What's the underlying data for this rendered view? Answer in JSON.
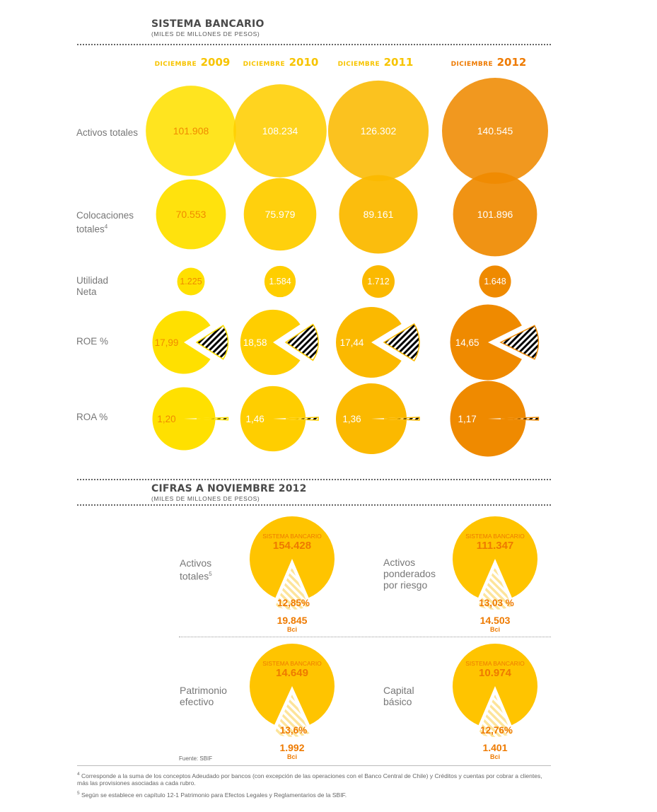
{
  "header": {
    "title": "SISTEMA BANCARIO",
    "subtitle": "(MILES DE MILLONES DE PESOS)"
  },
  "colors": {
    "y2009": "#ffe000",
    "y2010": "#ffce00",
    "y2011": "#fbb900",
    "y2012": "#ef8a00",
    "year_text_2009": "#f7c400",
    "year_text_2012": "#ee7a00",
    "value_text": "#f08a00",
    "nov_fill": "#ffc400",
    "nov_slice": "#fde9a0",
    "nov_text": "#ee7a00"
  },
  "years": [
    {
      "small": "diciembre",
      "big": "2009"
    },
    {
      "small": "diciembre",
      "big": "2010"
    },
    {
      "small": "diciembre",
      "big": "2011"
    },
    {
      "small": "diciembre",
      "big": "2012"
    }
  ],
  "chart_data": [
    {
      "type": "bubble",
      "title": "SISTEMA BANCARIO",
      "subtitle": "(MILES DE MILLONES DE PESOS)",
      "categories": [
        "DICIEMBRE 2009",
        "DICIEMBRE 2010",
        "DICIEMBRE 2011",
        "DICIEMBRE 2012"
      ],
      "series": [
        {
          "name": "Activos totales",
          "values": [
            101908,
            108234,
            126302,
            140545
          ],
          "labels": [
            "101.908",
            "108.234",
            "126.302",
            "140.545"
          ]
        },
        {
          "name": "Colocaciones totales",
          "note": "4",
          "values": [
            70553,
            75979,
            89161,
            101896
          ],
          "labels": [
            "70.553",
            "75.979",
            "89.161",
            "101.896"
          ]
        },
        {
          "name": "Utilidad Neta",
          "values": [
            1225,
            1584,
            1712,
            1648
          ],
          "labels": [
            "1.225",
            "1.584",
            "1.712",
            "1.648"
          ]
        },
        {
          "name": "ROE %",
          "values": [
            17.99,
            18.58,
            17.44,
            14.65
          ],
          "labels": [
            "17,99",
            "18,58",
            "17,44",
            "14,65"
          ]
        },
        {
          "name": "ROA %",
          "values": [
            1.2,
            1.46,
            1.36,
            1.17
          ],
          "labels": [
            "1,20",
            "1,46",
            "1,36",
            "1,17"
          ]
        }
      ]
    },
    {
      "type": "pie",
      "title": "CIFRAS A NOVIEMBRE 2012",
      "subtitle": "(MILES DE MILLONES DE PESOS)",
      "items": [
        {
          "name": "Activos totales",
          "note": "5",
          "system_label": "SISTEMA BANCARIO",
          "system_value": 154428,
          "system_text": "154.428",
          "share": 12.85,
          "share_text": "12,85%",
          "bci_value": 19845,
          "bci_text": "19.845",
          "bci_label": "Bci"
        },
        {
          "name": "Activos ponderados por riesgo",
          "system_label": "SISTEMA BANCARIO",
          "system_value": 111347,
          "system_text": "111.347",
          "share": 13.03,
          "share_text": "13,03 %",
          "bci_value": 14503,
          "bci_text": "14.503",
          "bci_label": "Bci"
        },
        {
          "name": "Patrimonio efectivo",
          "system_label": "SISTEMA BANCARIO",
          "system_value": 14649,
          "system_text": "14.649",
          "share": 13.6,
          "share_text": "13,6%",
          "bci_value": 1992,
          "bci_text": "1.992",
          "bci_label": "Bci"
        },
        {
          "name": "Capital básico",
          "system_label": "SISTEMA BANCARIO",
          "system_value": 10974,
          "system_text": "10.974",
          "share": 12.76,
          "share_text": "12,76%",
          "bci_value": 1401,
          "bci_text": "1.401",
          "bci_label": "Bci"
        }
      ]
    }
  ],
  "rows": {
    "activos": "Activos totales",
    "colocaciones_1": "Colocaciones",
    "colocaciones_2": "totales",
    "colocaciones_note": "4",
    "utilidad_1": "Utilidad",
    "utilidad_2": "Neta",
    "roe": "ROE %",
    "roa": "ROA %"
  },
  "november": {
    "title": "CIFRAS A NOVIEMBRE 2012",
    "subtitle": "(MILES DE MILLONES DE PESOS)",
    "labels": {
      "activos_1": "Activos",
      "activos_2": "totales",
      "activos_note": "5",
      "ponderados_1": "Activos",
      "ponderados_2": "ponderados",
      "ponderados_3": "por riesgo",
      "patrimonio_1": "Patrimonio",
      "patrimonio_2": "efectivo",
      "capital_1": "Capital",
      "capital_2": "básico"
    }
  },
  "footer": {
    "source": "Fuente: SBIF",
    "note4_num": "4",
    "note4": "Corresponde a la suma de los conceptos Adeudado por bancos (con excepción de las operaciones con el Banco Central de Chile) y Créditos y cuentas por cobrar a clientes, más las provisiones asociadas a cada rubro.",
    "note5_num": "5",
    "note5": "Según se establece en capítulo 12-1 Patrimonio para Efectos Legales y Reglamentarios de la SBIF."
  }
}
